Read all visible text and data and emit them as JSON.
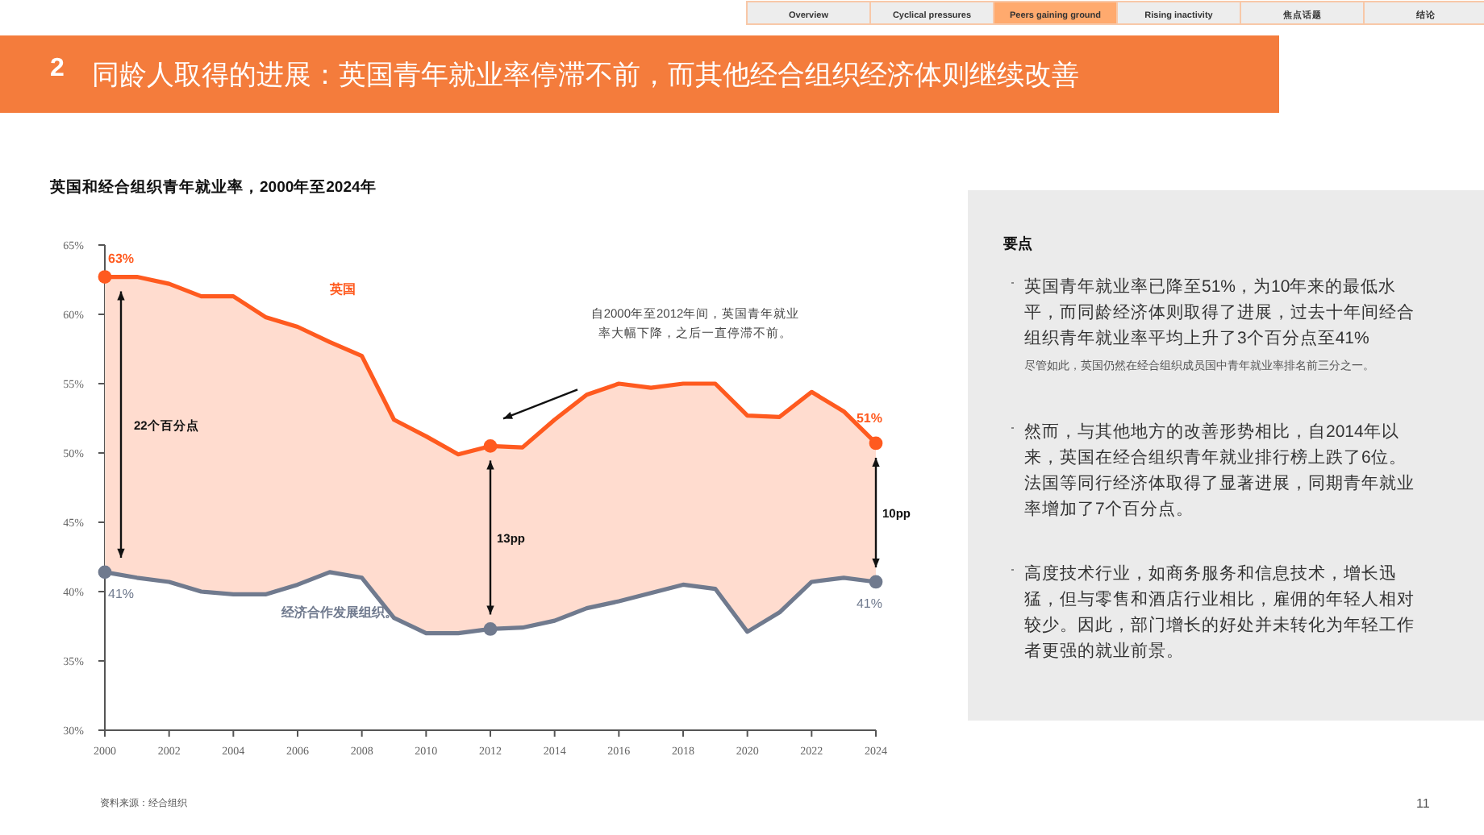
{
  "chart_data": {
    "type": "line",
    "title": "同龄人取得的进展：英国青年就业率停滞不前，而其他经合组织经济体则继续改善",
    "subtitle": "英国和经合组织青年就业率，2000年至2024年",
    "x": [
      2000,
      2001,
      2002,
      2003,
      2004,
      2005,
      2006,
      2007,
      2008,
      2009,
      2010,
      2011,
      2012,
      2013,
      2014,
      2015,
      2016,
      2017,
      2018,
      2019,
      2020,
      2021,
      2022,
      2023,
      2024
    ],
    "series": [
      {
        "name": "英国",
        "color": "#ff5a1f",
        "values": [
          62.7,
          62.7,
          62.2,
          61.3,
          61.3,
          59.8,
          59.1,
          58.0,
          57.0,
          52.4,
          51.2,
          49.9,
          50.5,
          50.4,
          52.4,
          54.2,
          55.0,
          54.7,
          55.0,
          55.0,
          52.7,
          52.6,
          54.4,
          53.0,
          50.7
        ],
        "lower": [
          41.4,
          41.0,
          40.7,
          40.0,
          39.8,
          39.8,
          40.5,
          41.4,
          41.0,
          38.1,
          37.0,
          37.0,
          37.3,
          37.4,
          37.9,
          38.8,
          39.3,
          39.9,
          40.5,
          40.2,
          37.1,
          38.5,
          40.7,
          41.0,
          40.7
        ],
        "upper": [
          62.7,
          62.7,
          62.2,
          61.3,
          61.3,
          59.8,
          59.1,
          58.0,
          57.0,
          52.4,
          51.2,
          49.9,
          50.5,
          50.4,
          52.4,
          54.2,
          55.0,
          54.7,
          55.0,
          55.0,
          52.7,
          52.6,
          54.4,
          53.0,
          50.7
        ]
      },
      {
        "name": "经济合作发展组织。",
        "color": "#707a8e",
        "values": [
          41.4,
          41.0,
          40.7,
          40.0,
          39.8,
          39.8,
          40.5,
          41.4,
          41.0,
          38.1,
          37.0,
          37.0,
          37.3,
          37.4,
          37.9,
          38.8,
          39.3,
          39.9,
          40.5,
          40.2,
          37.1,
          38.5,
          40.7,
          41.0,
          40.7
        ]
      },
      {
        "type": "scatter",
        "color": "#ff5a1f",
        "x": [
          2000,
          2012,
          2024
        ],
        "values": [
          62.7,
          50.5,
          50.7
        ],
        "value_labels": [
          "63%",
          null,
          "51%"
        ]
      },
      {
        "type": "scatter",
        "color": "#707a8e",
        "x": [
          2000,
          2012,
          2024
        ],
        "values": [
          41.4,
          37.3,
          40.7
        ],
        "value_labels": [
          "41%",
          null,
          "41%"
        ]
      }
    ],
    "xlim": [
      2000,
      2024
    ],
    "xticks": [
      2000,
      2002,
      2004,
      2006,
      2008,
      2010,
      2012,
      2014,
      2016,
      2018,
      2020,
      2022,
      2024
    ],
    "ylim": [
      30,
      65
    ],
    "yticks": [
      {
        "value": 30,
        "label": "30%"
      },
      {
        "value": 35,
        "label": "35%"
      },
      {
        "value": 40,
        "label": "40%"
      },
      {
        "value": 45,
        "label": "45%"
      },
      {
        "value": 50,
        "label": "50%"
      },
      {
        "value": 55,
        "label": "55%"
      },
      {
        "value": 60,
        "label": "60%"
      },
      {
        "value": 65,
        "label": "65%"
      }
    ],
    "grid": false,
    "annotations": [
      "2",
      "Overview",
      "Cyclical pressures",
      "Peers gaining ground",
      "Rising inactivity",
      "焦点话题",
      "结论",
      "要点",
      "英国青年就业率已降至51%，为10年来的最低水平，而同龄经济体则取得了进展，过去十年间经合组织青年就业率平均上升了3个百分点至41%",
      "尽管如此，英国仍然在经合组织成员国中青年就业率排名前三分之一。",
      "然而，与其他地方的改善形势相比，自2014年以来，英国在经合组织青年就业排行榜上跌了6位。法国等同行经济体取得了显著进展，同期青年就业率增加了7个百分点。",
      "高度技术行业，如商务服务和信息技术，增长迅猛，但与零售和酒店行业相比，雇佣的年轻人相对较少。因此，部门增长的好处并未转化为年轻工作者更强的就业前景。",
      "资料来源：经合组织",
      "11",
      "自2000年至2012年间，英国青年就业率大幅下降，之后一直停滞不前。",
      "22个百分点",
      "13pp",
      "10pp"
    ]
  }
}
